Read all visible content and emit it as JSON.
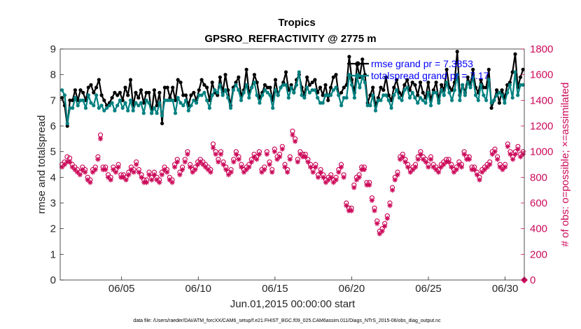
{
  "chart_data": {
    "type": "line",
    "title": "Tropics",
    "subtitle": "GPSRO_REFRACTIVITY @ 2775 m",
    "xlabel": "Jun.01,2015 00:00:00 start",
    "ylabel": "rmse and totalspread",
    "y2label": "# of obs: o=possible; ×=assimilated",
    "x_tick_labels": [
      "06/05",
      "06/10",
      "06/15",
      "06/20",
      "06/25",
      "06/30"
    ],
    "x_tick_values": [
      5,
      10,
      15,
      20,
      25,
      30
    ],
    "xlim": [
      1,
      31.25
    ],
    "ylim": [
      0,
      9
    ],
    "y_ticks": [
      0,
      1,
      2,
      3,
      4,
      5,
      6,
      7,
      8,
      9
    ],
    "y2lim": [
      0,
      1800
    ],
    "y2_ticks": [
      0,
      200,
      400,
      600,
      800,
      1000,
      1200,
      1400,
      1600,
      1800
    ],
    "legend": [
      "rmse grand pr = 7.3853",
      "totalspread grand pr = 7.17"
    ],
    "footer": "data file: /Users/raeder/DAI/ATM_forcXX/CAM6_setup/f.e21.FHIST_BGC.f09_025.CAM6assim.011/Diags_NTrS_2015-06/obs_diag_output.nc",
    "colors": {
      "rmse": "#000000",
      "totalspread": "#008080",
      "obs": "#cc0a5a",
      "legend_text": "#0000ff"
    },
    "series": [
      {
        "name": "rmse",
        "axis": "left",
        "values": [
          7.1,
          6.8,
          6.0,
          7.0,
          7.0,
          7.4,
          7.0,
          7.4,
          7.3,
          7.0,
          7.5,
          7.6,
          7.3,
          7.5,
          7.8,
          7.2,
          7.0,
          6.8,
          6.9,
          7.1,
          7.3,
          7.2,
          7.3,
          7.0,
          7.5,
          7.2,
          7.8,
          6.8,
          7.3,
          7.1,
          7.4,
          6.9,
          7.3,
          7.3,
          6.5,
          7.4,
          6.8,
          7.3,
          6.1,
          7.5,
          7.5,
          7.1,
          7.5,
          7.0,
          7.8,
          7.7,
          7.2,
          7.2,
          6.8,
          7.2,
          7.3,
          7.0,
          7.4,
          7.8,
          7.6,
          7.5,
          7.0,
          7.7,
          7.3,
          7.2,
          7.9,
          7.3,
          8.0,
          7.4,
          6.8,
          7.5,
          7.7,
          7.9,
          7.2,
          7.4,
          8.2,
          7.3,
          7.5,
          8.0,
          7.7,
          7.1,
          7.3,
          7.6,
          7.5,
          7.5,
          7.0,
          7.8,
          7.2,
          7.5,
          7.7,
          8.1,
          7.4,
          7.6,
          7.3,
          7.8,
          8.0,
          7.5,
          7.2,
          7.9,
          7.6,
          7.7,
          7.8,
          7.3,
          7.5,
          7.2,
          7.6,
          7.0,
          7.5,
          7.9,
          8.0,
          7.2,
          7.3,
          7.5,
          7.6,
          8.7,
          7.8,
          7.3,
          8.4,
          7.9,
          8.6,
          8.0,
          6.9,
          7.2,
          7.5,
          6.8,
          7.1,
          7.5,
          7.4,
          7.9,
          7.2,
          7.0,
          7.5,
          7.8,
          7.3,
          7.2,
          7.6,
          7.8,
          7.4,
          7.7,
          7.6,
          7.2,
          7.7,
          7.3,
          7.1,
          7.7,
          7.0,
          7.4,
          7.7,
          7.0,
          7.6,
          7.4,
          8.2,
          7.5,
          7.4,
          7.7,
          8.9,
          7.2,
          7.6,
          7.3,
          7.9,
          7.6,
          8.2,
          7.5,
          7.3,
          7.8,
          7.5,
          7.5,
          8.2,
          6.7,
          7.0,
          7.4,
          6.9,
          7.4,
          7.1,
          7.6,
          7.7,
          8.1,
          8.8,
          7.5,
          7.9,
          8.2
        ]
      },
      {
        "name": "totalspread",
        "axis": "left",
        "values": [
          7.4,
          7.2,
          6.1,
          6.7,
          6.7,
          7.1,
          6.8,
          7.0,
          7.0,
          6.7,
          7.2,
          6.9,
          6.8,
          7.2,
          6.7,
          6.8,
          6.6,
          6.7,
          6.8,
          6.9,
          6.6,
          6.8,
          7.0,
          6.7,
          6.9,
          6.6,
          7.0,
          6.6,
          6.9,
          6.8,
          6.9,
          6.5,
          7.0,
          6.9,
          6.5,
          6.7,
          6.5,
          6.9,
          6.4,
          7.0,
          7.0,
          7.0,
          7.0,
          6.5,
          7.1,
          6.9,
          6.8,
          7.0,
          6.6,
          6.8,
          7.0,
          6.9,
          7.2,
          7.2,
          7.3,
          7.0,
          6.7,
          7.2,
          7.4,
          7.3,
          7.6,
          7.2,
          7.4,
          7.1,
          6.7,
          7.4,
          7.6,
          7.4,
          7.0,
          7.3,
          7.6,
          7.1,
          7.5,
          7.7,
          7.2,
          6.9,
          7.2,
          7.4,
          7.3,
          7.2,
          6.7,
          7.4,
          7.2,
          7.5,
          7.6,
          7.6,
          7.1,
          7.5,
          7.3,
          7.6,
          8.1,
          7.2,
          7.1,
          7.5,
          7.3,
          7.4,
          7.4,
          7.1,
          6.9,
          6.9,
          7.2,
          7.2,
          7.2,
          7.4,
          7.5,
          7.2,
          6.8,
          7.1,
          7.1,
          8.0,
          7.6,
          7.1,
          7.9,
          7.5,
          7.9,
          7.7,
          6.8,
          6.8,
          7.2,
          6.6,
          7.0,
          7.0,
          7.2,
          7.2,
          7.0,
          6.7,
          7.2,
          7.4,
          7.1,
          7.0,
          7.4,
          7.5,
          7.1,
          7.3,
          7.1,
          6.9,
          7.1,
          7.0,
          6.9,
          7.3,
          6.8,
          7.3,
          7.3,
          6.9,
          7.4,
          7.2,
          7.7,
          7.3,
          7.0,
          7.4,
          8.0,
          7.0,
          7.6,
          7.2,
          7.7,
          7.5,
          7.9,
          7.2,
          7.0,
          7.6,
          7.2,
          7.0,
          7.8,
          6.9,
          7.0,
          7.2,
          7.3,
          7.2,
          6.9,
          7.3,
          7.6,
          7.1,
          8.1,
          7.2,
          7.6,
          7.6
        ]
      },
      {
        "name": "obs_possible",
        "axis": "right",
        "values": [
          900,
          920,
          960,
          950,
          900,
          880,
          860,
          840,
          880,
          860,
          800,
          780,
          860,
          880,
          960,
          1130,
          880,
          880,
          820,
          800,
          880,
          860,
          900,
          820,
          820,
          800,
          840,
          880,
          860,
          920,
          860,
          820,
          780,
          780,
          840,
          800,
          840,
          800,
          780,
          840,
          880,
          860,
          800,
          780,
          900,
          940,
          840,
          880,
          940,
          1000,
          900,
          860,
          880,
          920,
          940,
          920,
          900,
          880,
          860,
          1060,
          1000,
          940,
          1000,
          920,
          880,
          840,
          860,
          940,
          1000,
          960,
          900,
          860,
          880,
          900,
          940,
          980,
          960,
          1000,
          860,
          880,
          1000,
          920,
          860,
          1020,
          960,
          980,
          1040,
          900,
          860,
          960,
          1160,
          1100,
          940,
          1000,
          980,
          980,
          940,
          900,
          860,
          900,
          820,
          860,
          820,
          780,
          800,
          820,
          780,
          800,
          860,
          900,
          820,
          600,
          560,
          560,
          740,
          800,
          820,
          880,
          880,
          760,
          760,
          640,
          560,
          460,
          380,
          400,
          440,
          500,
          600,
          720,
          800,
          840,
          960,
          980,
          940,
          900,
          860,
          880,
          900,
          960,
          1000,
          960,
          940,
          900,
          960,
          900,
          880,
          860,
          900,
          920,
          940,
          940,
          900,
          860,
          880,
          920,
          900,
          1000,
          960,
          960,
          880,
          880,
          840,
          800,
          860,
          880,
          900,
          920,
          1000,
          1020,
          960,
          900,
          880,
          900,
          1060,
          1000,
          960,
          1000,
          1040,
          980,
          1000
        ]
      },
      {
        "name": "obs_assimilated",
        "axis": "right",
        "values": [
          880,
          900,
          920,
          920,
          880,
          860,
          840,
          820,
          860,
          840,
          780,
          760,
          840,
          860,
          940,
          1100,
          860,
          860,
          800,
          780,
          860,
          840,
          880,
          800,
          800,
          780,
          820,
          860,
          840,
          900,
          840,
          800,
          760,
          760,
          820,
          780,
          820,
          780,
          760,
          820,
          860,
          840,
          780,
          760,
          880,
          920,
          820,
          860,
          920,
          980,
          880,
          840,
          860,
          900,
          920,
          900,
          880,
          860,
          840,
          1030,
          980,
          920,
          980,
          900,
          860,
          820,
          840,
          920,
          980,
          940,
          880,
          840,
          860,
          880,
          920,
          960,
          940,
          980,
          840,
          860,
          980,
          900,
          840,
          1000,
          940,
          960,
          1020,
          880,
          840,
          940,
          1130,
          1080,
          920,
          980,
          960,
          960,
          920,
          880,
          840,
          880,
          800,
          840,
          800,
          760,
          780,
          800,
          760,
          780,
          840,
          880,
          800,
          580,
          540,
          540,
          720,
          780,
          800,
          860,
          860,
          740,
          740,
          620,
          540,
          440,
          360,
          380,
          420,
          480,
          580,
          700,
          780,
          820,
          940,
          960,
          920,
          880,
          840,
          860,
          880,
          940,
          980,
          940,
          920,
          880,
          940,
          880,
          860,
          840,
          880,
          900,
          920,
          920,
          880,
          840,
          860,
          900,
          880,
          980,
          940,
          940,
          860,
          860,
          820,
          780,
          840,
          860,
          880,
          900,
          980,
          1000,
          940,
          880,
          860,
          880,
          1040,
          980,
          940,
          980,
          1020,
          960,
          980
        ]
      }
    ]
  }
}
